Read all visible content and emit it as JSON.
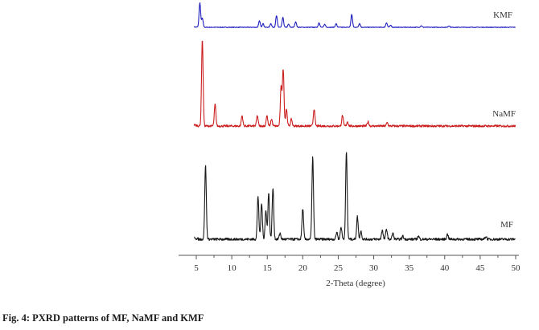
{
  "caption": "Fig. 4: PXRD patterns of MF, NaMF and KMF",
  "chart_data": {
    "type": "line",
    "title": "",
    "xlabel": "2-Theta (degree)",
    "ylabel": "",
    "xlim": [
      4,
      50
    ],
    "xticks": [
      5,
      10,
      15,
      20,
      25,
      30,
      35,
      40,
      45,
      50
    ],
    "tick_labels": [
      "5",
      "10",
      "15",
      "20",
      "25",
      "30",
      "35",
      "40",
      "45",
      "50"
    ],
    "grid": false,
    "legend": "none",
    "series": [
      {
        "name": "KMF",
        "color": "#1f1fbf",
        "peaks": [
          [
            5.5,
            0.95
          ],
          [
            5.85,
            0.35
          ],
          [
            13.9,
            0.25
          ],
          [
            14.4,
            0.15
          ],
          [
            15.5,
            0.15
          ],
          [
            16.3,
            0.45
          ],
          [
            17.2,
            0.38
          ],
          [
            18.0,
            0.12
          ],
          [
            19.0,
            0.22
          ],
          [
            22.3,
            0.18
          ],
          [
            23.1,
            0.12
          ],
          [
            24.7,
            0.14
          ],
          [
            26.9,
            0.5
          ],
          [
            28.0,
            0.15
          ],
          [
            31.8,
            0.18
          ],
          [
            32.4,
            0.08
          ],
          [
            36.7,
            0.06
          ],
          [
            40.6,
            0.06
          ]
        ]
      },
      {
        "name": "NaMF",
        "color": "#cc1f1f",
        "peaks": [
          [
            5.85,
            1.0
          ],
          [
            7.65,
            0.25
          ],
          [
            11.45,
            0.12
          ],
          [
            13.6,
            0.12
          ],
          [
            14.95,
            0.12
          ],
          [
            15.6,
            0.08
          ],
          [
            16.95,
            0.45
          ],
          [
            17.25,
            0.65
          ],
          [
            17.7,
            0.2
          ],
          [
            18.4,
            0.08
          ],
          [
            21.6,
            0.2
          ],
          [
            25.6,
            0.12
          ],
          [
            26.3,
            0.05
          ],
          [
            29.2,
            0.05
          ],
          [
            31.9,
            0.04
          ]
        ]
      },
      {
        "name": "MF",
        "color": "#1a1a1a",
        "peaks": [
          [
            6.3,
            0.72
          ],
          [
            13.7,
            0.42
          ],
          [
            14.2,
            0.35
          ],
          [
            14.8,
            0.28
          ],
          [
            15.2,
            0.45
          ],
          [
            15.8,
            0.5
          ],
          [
            16.8,
            0.06
          ],
          [
            20.0,
            0.3
          ],
          [
            21.4,
            0.8
          ],
          [
            24.8,
            0.07
          ],
          [
            25.4,
            0.12
          ],
          [
            26.15,
            0.85
          ],
          [
            27.7,
            0.22
          ],
          [
            28.2,
            0.08
          ],
          [
            31.2,
            0.09
          ],
          [
            31.8,
            0.1
          ],
          [
            32.7,
            0.06
          ],
          [
            34.1,
            0.03
          ],
          [
            36.3,
            0.03
          ],
          [
            40.4,
            0.05
          ],
          [
            45.8,
            0.03
          ]
        ]
      }
    ]
  }
}
